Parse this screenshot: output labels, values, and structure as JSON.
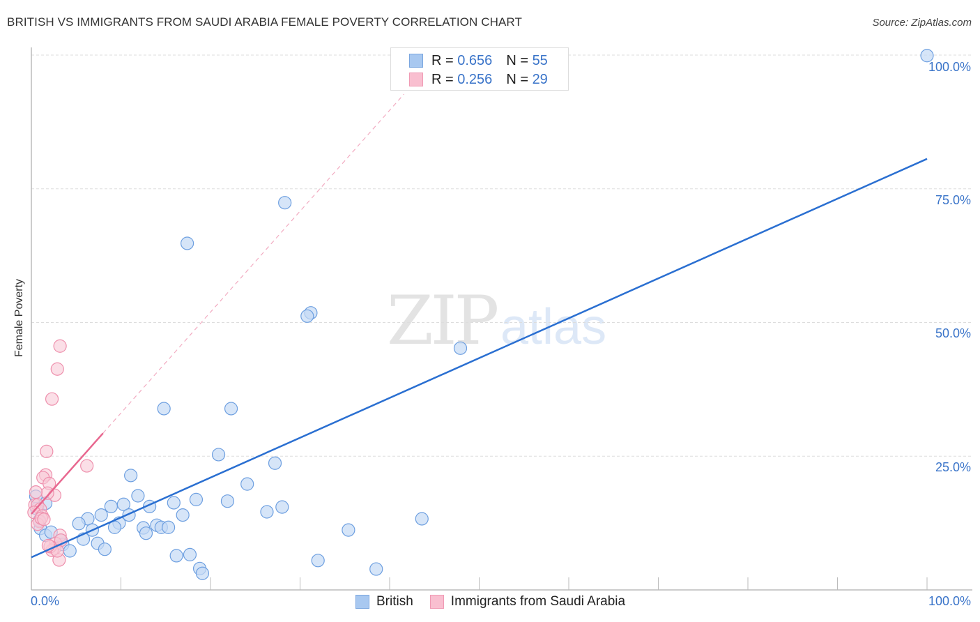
{
  "title": "BRITISH VS IMMIGRANTS FROM SAUDI ARABIA FEMALE POVERTY CORRELATION CHART",
  "source": "Source: ZipAtlas.com",
  "watermark": {
    "part1": "ZIP",
    "part2": "atlas"
  },
  "y_axis_label": "Female Poverty",
  "y_ticks": [
    {
      "label": "100.0%",
      "value": 100
    },
    {
      "label": "75.0%",
      "value": 75
    },
    {
      "label": "50.0%",
      "value": 50
    },
    {
      "label": "25.0%",
      "value": 25
    }
  ],
  "x_ticks": {
    "min_label": "0.0%",
    "max_label": "100.0%"
  },
  "legend": {
    "rows": [
      {
        "r_label": "R = ",
        "r_value": "0.656",
        "n_label": "N = ",
        "n_value": "55",
        "color": "#a8c8f0",
        "border": "#7aa6df"
      },
      {
        "r_label": "R = ",
        "r_value": "0.256",
        "n_label": "N = ",
        "n_value": "29",
        "color": "#f9bfd0",
        "border": "#f09ab4"
      }
    ]
  },
  "bottom_legend": [
    {
      "label": "British",
      "color": "#a8c8f0",
      "border": "#7aa6df"
    },
    {
      "label": "Immigrants from Saudi Arabia",
      "color": "#f9bfd0",
      "border": "#f09ab4"
    }
  ],
  "colors": {
    "british_fill": "#c5daf5",
    "british_stroke": "#6d9fe0",
    "british_line": "#2a6fd1",
    "saudi_fill": "#f9c9d7",
    "saudi_stroke": "#ee8fac",
    "saudi_line": "#e8678f",
    "grid": "#dddddd",
    "axis": "#bbbbbb",
    "tick_label": "#3a74c9"
  },
  "chart_data": {
    "type": "scatter",
    "title": "BRITISH VS IMMIGRANTS FROM SAUDI ARABIA FEMALE POVERTY CORRELATION CHART",
    "xlabel": "",
    "ylabel": "Female Poverty",
    "xlim": [
      0,
      100
    ],
    "ylim": [
      0,
      100
    ],
    "x_tick_labels": [
      "0.0%",
      "100.0%"
    ],
    "y_tick_labels": [
      "25.0%",
      "50.0%",
      "75.0%",
      "100.0%"
    ],
    "grid": true,
    "legend_position": "top-center",
    "series": [
      {
        "name": "British",
        "R": 0.656,
        "N": 55,
        "points": [
          [
            100,
            99.9
          ],
          [
            28.3,
            72.4
          ],
          [
            17.4,
            64.8
          ],
          [
            31.2,
            51.8
          ],
          [
            30.8,
            51.2
          ],
          [
            47.9,
            45.2
          ],
          [
            14.8,
            33.9
          ],
          [
            22.3,
            33.9
          ],
          [
            20.9,
            25.3
          ],
          [
            27.2,
            23.7
          ],
          [
            11.1,
            21.4
          ],
          [
            24.1,
            19.8
          ],
          [
            11.9,
            17.6
          ],
          [
            18.4,
            16.9
          ],
          [
            8.9,
            15.6
          ],
          [
            10.3,
            16.0
          ],
          [
            13.2,
            15.6
          ],
          [
            15.9,
            16.3
          ],
          [
            21.9,
            16.6
          ],
          [
            28.0,
            15.5
          ],
          [
            26.3,
            14.6
          ],
          [
            43.6,
            13.3
          ],
          [
            16.9,
            14.0
          ],
          [
            10.9,
            14.0
          ],
          [
            7.8,
            14.0
          ],
          [
            6.3,
            13.3
          ],
          [
            9.8,
            12.5
          ],
          [
            5.3,
            12.4
          ],
          [
            14.0,
            12.1
          ],
          [
            14.5,
            11.7
          ],
          [
            15.3,
            11.7
          ],
          [
            12.5,
            11.6
          ],
          [
            12.8,
            10.6
          ],
          [
            9.3,
            11.7
          ],
          [
            6.8,
            11.2
          ],
          [
            35.4,
            11.2
          ],
          [
            5.8,
            9.5
          ],
          [
            7.4,
            8.7
          ],
          [
            8.2,
            7.6
          ],
          [
            16.2,
            6.4
          ],
          [
            17.7,
            6.6
          ],
          [
            32.0,
            5.5
          ],
          [
            18.8,
            4.0
          ],
          [
            19.1,
            3.1
          ],
          [
            38.5,
            3.9
          ],
          [
            0.5,
            17.5
          ],
          [
            1.0,
            11.5
          ],
          [
            1.6,
            10.2
          ],
          [
            2.2,
            10.8
          ],
          [
            3.3,
            9.3
          ],
          [
            3.5,
            8.5
          ],
          [
            4.3,
            7.3
          ],
          [
            1.6,
            16.2
          ],
          [
            0.9,
            13.0
          ],
          [
            0.6,
            15.2
          ]
        ],
        "trendline": {
          "x": [
            0,
            100
          ],
          "y": [
            6.1,
            80.6
          ],
          "style": "solid"
        }
      },
      {
        "name": "Immigrants from Saudi Arabia",
        "R": 0.256,
        "N": 29,
        "points": [
          [
            3.2,
            45.6
          ],
          [
            2.9,
            41.3
          ],
          [
            2.3,
            35.7
          ],
          [
            1.7,
            25.9
          ],
          [
            6.2,
            23.2
          ],
          [
            1.6,
            21.5
          ],
          [
            1.3,
            21.0
          ],
          [
            2.0,
            19.9
          ],
          [
            2.6,
            17.7
          ],
          [
            1.8,
            18.1
          ],
          [
            0.5,
            18.3
          ],
          [
            0.4,
            15.9
          ],
          [
            0.7,
            15.9
          ],
          [
            1.0,
            15.1
          ],
          [
            0.3,
            14.5
          ],
          [
            1.2,
            13.8
          ],
          [
            0.9,
            12.8
          ],
          [
            0.7,
            12.3
          ],
          [
            3.2,
            10.2
          ],
          [
            2.7,
            8.7
          ],
          [
            2.6,
            7.8
          ],
          [
            2.3,
            7.4
          ],
          [
            3.1,
            5.6
          ],
          [
            1.1,
            13.4
          ],
          [
            1.4,
            13.2
          ],
          [
            3.3,
            9.3
          ],
          [
            2.1,
            8.1
          ],
          [
            2.9,
            7.3
          ],
          [
            1.9,
            8.3
          ]
        ],
        "trendline": {
          "x": [
            0,
            8.0
          ],
          "y": [
            14.2,
            29.3
          ],
          "style": "solid",
          "extension": {
            "x": [
              8.0,
              41.6
            ],
            "y": [
              29.3,
              92.7
            ],
            "style": "dashed"
          }
        }
      }
    ]
  }
}
